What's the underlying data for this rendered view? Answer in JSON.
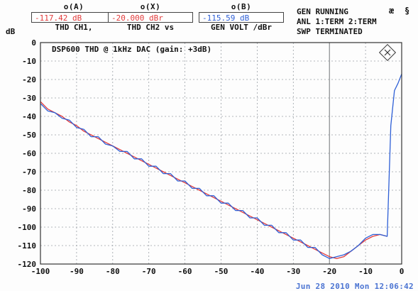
{
  "readouts": [
    {
      "cap": "o(A)",
      "value": "-117.42 dB",
      "unit": "THD   CH1,",
      "color": "red"
    },
    {
      "cap": "o(X)",
      "value": "-20.000 dBr",
      "unit": "THD   CH2 vs",
      "color": "red"
    },
    {
      "cap": "o(B)",
      "value": "-115.59 dB",
      "unit": "GEN VOLT /dBr",
      "color": "blue"
    }
  ],
  "status": [
    "GEN RUNNING",
    "ANL 1:TERM 2:TERM",
    "SWP TERMINATED"
  ],
  "icons": {
    "left": "æ",
    "right": "§"
  },
  "y_unit_label": "dB",
  "timestamp": "Jun 28 2010  Mon  12:06:42",
  "chart_data": {
    "type": "line",
    "title": "DSP600 THD @ 1kHz DAC (gain: +3dB)",
    "xlim": [
      -100,
      0
    ],
    "ylim": [
      -120,
      0
    ],
    "xticks": [
      -100,
      -90,
      -80,
      -70,
      -60,
      -50,
      -40,
      -30,
      -20,
      -10,
      0
    ],
    "yticks": [
      0,
      -10,
      -20,
      -30,
      -40,
      -50,
      -60,
      -70,
      -80,
      -90,
      -100,
      -110,
      -120
    ],
    "grid": true,
    "series": [
      {
        "color": "#e23a3a",
        "x": [
          -100,
          -98,
          -96,
          -94,
          -92,
          -90,
          -88,
          -86,
          -84,
          -82,
          -80,
          -78,
          -76,
          -74,
          -72,
          -70,
          -68,
          -66,
          -64,
          -62,
          -60,
          -58,
          -56,
          -54,
          -52,
          -50,
          -48,
          -46,
          -44,
          -42,
          -40,
          -38,
          -36,
          -34,
          -32,
          -30,
          -28,
          -26,
          -24,
          -22,
          -20,
          -18,
          -16,
          -14,
          -12,
          -10,
          -8,
          -6,
          -4
        ],
        "y": [
          -32,
          -36,
          -38,
          -40,
          -43,
          -45,
          -48,
          -50,
          -52,
          -54,
          -56,
          -58,
          -60,
          -62,
          -64,
          -66,
          -68,
          -70,
          -72,
          -74,
          -76,
          -78,
          -80,
          -82,
          -84,
          -86,
          -88,
          -90,
          -92,
          -94,
          -96,
          -98,
          -100,
          -102,
          -104,
          -106,
          -108,
          -110,
          -112,
          -114,
          -116,
          -117,
          -116,
          -113,
          -110,
          -107,
          -105,
          -104,
          -105
        ]
      },
      {
        "color": "#2e5fd6",
        "x": [
          -100,
          -98,
          -96,
          -94,
          -92,
          -90,
          -88,
          -86,
          -84,
          -82,
          -80,
          -78,
          -76,
          -74,
          -72,
          -70,
          -68,
          -66,
          -64,
          -62,
          -60,
          -58,
          -56,
          -54,
          -52,
          -50,
          -48,
          -46,
          -44,
          -42,
          -40,
          -38,
          -36,
          -34,
          -32,
          -30,
          -28,
          -26,
          -24,
          -22,
          -20,
          -18,
          -16,
          -14,
          -12,
          -10,
          -8,
          -6,
          -4,
          -3,
          -2,
          -1,
          0
        ],
        "y": [
          -33,
          -37,
          -38,
          -41,
          -42,
          -46,
          -47,
          -51,
          -51,
          -55,
          -56,
          -59,
          -59,
          -63,
          -63,
          -67,
          -67,
          -71,
          -71,
          -75,
          -75,
          -79,
          -79,
          -83,
          -83,
          -87,
          -87,
          -91,
          -91,
          -95,
          -95,
          -99,
          -99,
          -103,
          -103,
          -107,
          -107,
          -111,
          -111,
          -115,
          -117,
          -116,
          -115,
          -113,
          -110,
          -106,
          -104,
          -104,
          -105,
          -45,
          -26,
          -22,
          -17
        ]
      }
    ]
  }
}
